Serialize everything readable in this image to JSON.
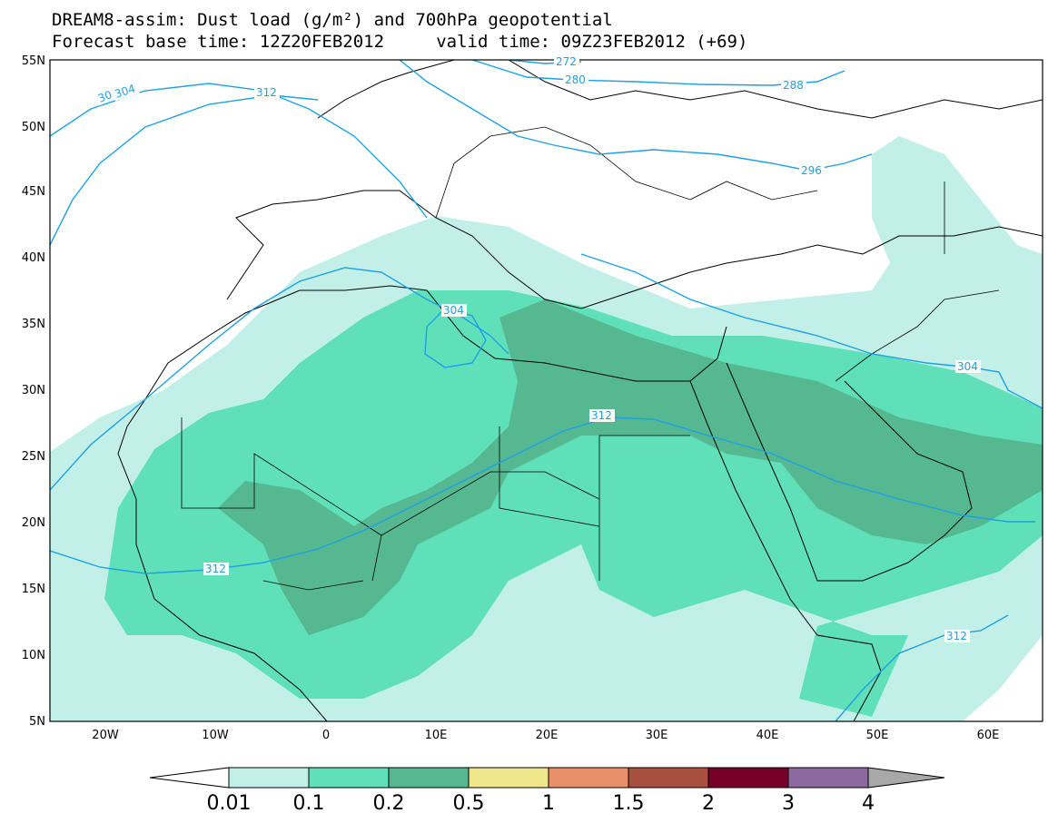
{
  "title": {
    "line1": "DREAM8-assim: Dust load (g/m²) and 700hPa geopotential",
    "line2": "Forecast base time: 12Z20FEB2012     valid time: 09Z23FEB2012 (+69)"
  },
  "map": {
    "lat_labels": [
      "55N",
      "50N",
      "45N",
      "40N",
      "35N",
      "30N",
      "25N",
      "20N",
      "15N",
      "10N",
      "5N"
    ],
    "lon_labels": [
      "20W",
      "10W",
      "0",
      "10E",
      "20E",
      "30E",
      "40E",
      "50E",
      "60E"
    ],
    "contour_labels": [
      "30",
      "304",
      "312",
      "272",
      "280",
      "288",
      "296",
      "304",
      "312",
      "304",
      "312",
      "312"
    ],
    "colors": {
      "contour": "#1ea0e6",
      "dust_0_01": "#c2f0e8",
      "dust_0_1": "#5fe0b8",
      "dust_0_2": "#55b890"
    }
  },
  "colorbar": {
    "labels": [
      "0.01",
      "0.1",
      "0.2",
      "0.5",
      "1",
      "1.5",
      "2",
      "3",
      "4"
    ],
    "colors": [
      "#c2f0e8",
      "#5fe0b8",
      "#55b890",
      "#f0e68c",
      "#e8906a",
      "#a85040",
      "#780028",
      "#8c6aa0"
    ],
    "left_arrow_color": "#ffffff",
    "right_arrow_color": "#a8a8a8"
  }
}
